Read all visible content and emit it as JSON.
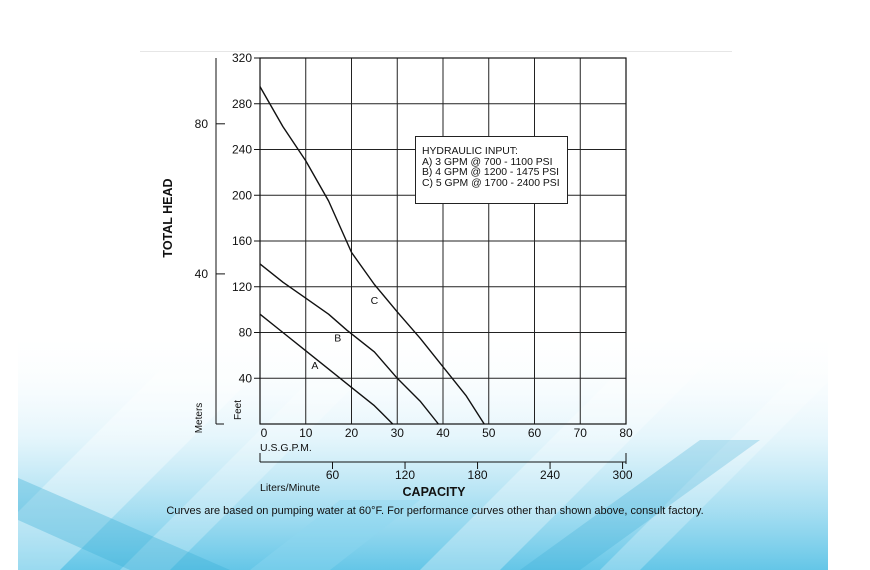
{
  "chart_data": {
    "type": "line",
    "title": "",
    "ylabel": "TOTAL HEAD",
    "xlabel": "CAPACITY",
    "x_primary": {
      "unit_label": "U.S.G.P.M.",
      "range": [
        0,
        80
      ],
      "ticks": [
        0,
        10,
        20,
        30,
        40,
        50,
        60,
        70,
        80
      ]
    },
    "x_secondary": {
      "unit_label": "Liters/Minute",
      "ticks": [
        60,
        120,
        180,
        240,
        300
      ]
    },
    "y_primary": {
      "unit_label": "Feet",
      "range": [
        0,
        320
      ],
      "ticks": [
        40,
        80,
        120,
        160,
        200,
        240,
        280,
        320
      ]
    },
    "y_secondary": {
      "unit_label": "Meters",
      "ticks": [
        40,
        80
      ]
    },
    "grid": true,
    "series": [
      {
        "name": "A",
        "x": [
          0,
          5,
          10,
          15,
          20,
          25,
          29
        ],
        "y": [
          96,
          80,
          64,
          48,
          32,
          16,
          0
        ]
      },
      {
        "name": "B",
        "x": [
          0,
          5,
          10,
          15,
          19,
          25,
          30,
          35,
          39
        ],
        "y": [
          140,
          124,
          110,
          96,
          82,
          63,
          40,
          20,
          0
        ]
      },
      {
        "name": "C",
        "x": [
          0,
          5,
          10,
          15,
          20,
          25,
          30,
          35,
          40,
          45,
          49
        ],
        "y": [
          295,
          260,
          230,
          195,
          150,
          122,
          98,
          75,
          50,
          25,
          0
        ]
      }
    ],
    "series_label_positions": [
      {
        "name": "A",
        "x": 12,
        "y": 48
      },
      {
        "name": "B",
        "x": 17,
        "y": 72
      },
      {
        "name": "C",
        "x": 25,
        "y": 105
      }
    ],
    "legend_box": {
      "lines": [
        "HYDRAULIC INPUT:",
        "A) 3 GPM @ 700 - 1100 PSI",
        "B) 4 GPM @ 1200 - 1475 PSI",
        "C) 5 GPM @ 1700 - 2400 PSI"
      ],
      "placement": "top-right"
    }
  },
  "footnote": "Curves are based on pumping water at 60°F. For performance curves other than shown above, consult factory.",
  "colors": {
    "line": "#111111",
    "grid": "#222222",
    "background_pattern": "#56c0e3"
  }
}
